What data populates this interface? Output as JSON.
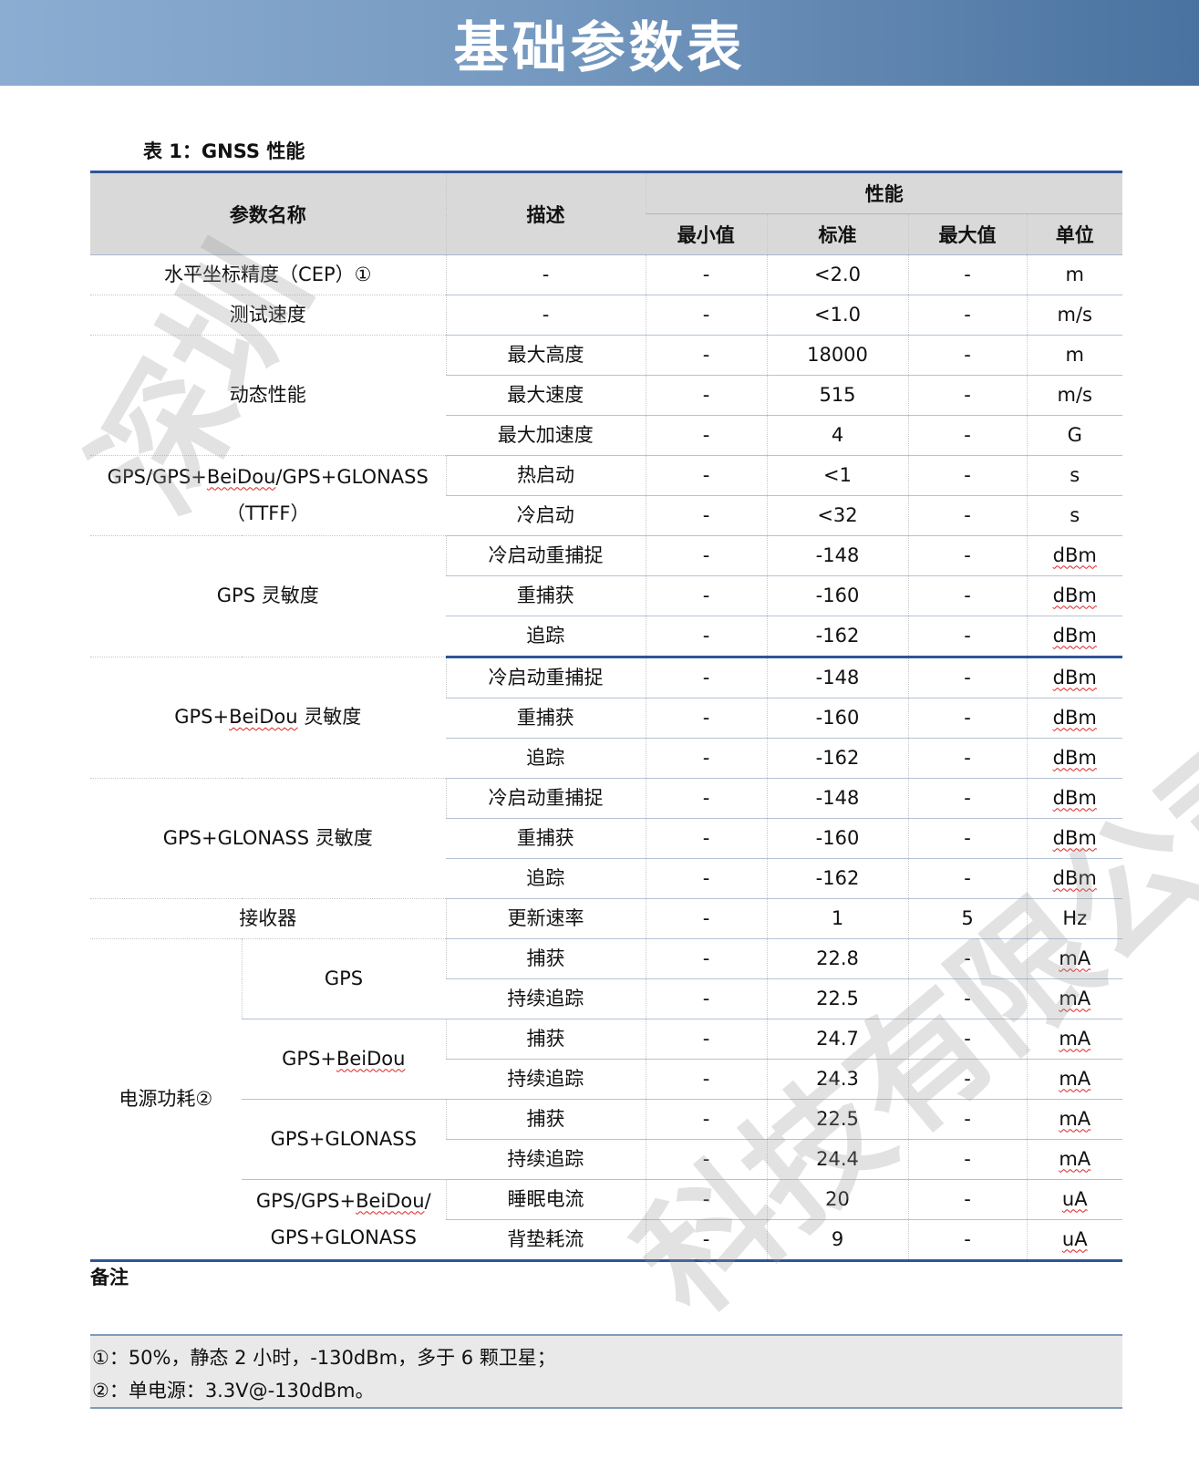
{
  "banner": {
    "title": "基础参数表"
  },
  "watermark": {
    "text1": "深圳",
    "text2": "科技有限公司"
  },
  "caption": "表 1：GNSS 性能",
  "header": {
    "param": "参数名称",
    "desc": "描述",
    "perf": "性能",
    "min": "最小值",
    "typ": "标准",
    "max": "最大值",
    "unit": "单位"
  },
  "groups": [
    {
      "name": "水平坐标精度（CEP）①",
      "rows": [
        {
          "desc": "-",
          "min": "-",
          "typ": "<2.0",
          "max": "-",
          "unit": "m"
        }
      ]
    },
    {
      "name": "测试速度",
      "rows": [
        {
          "desc": "-",
          "min": "-",
          "typ": "<1.0",
          "max": "-",
          "unit": "m/s"
        }
      ]
    },
    {
      "name": "动态性能",
      "rows": [
        {
          "desc": "最大高度",
          "min": "-",
          "typ": "18000",
          "max": "-",
          "unit": "m"
        },
        {
          "desc": "最大速度",
          "min": "-",
          "typ": "515",
          "max": "-",
          "unit": "m/s"
        },
        {
          "desc": "最大加速度",
          "min": "-",
          "typ": "4",
          "max": "-",
          "unit": "G"
        }
      ]
    },
    {
      "name": "GPS/GPS+BeiDou/GPS+GLONASS（TTFF）",
      "rows": [
        {
          "desc": "热启动",
          "min": "-",
          "typ": "<1",
          "max": "-",
          "unit": "s"
        },
        {
          "desc": "冷启动",
          "min": "-",
          "typ": "<32",
          "max": "-",
          "unit": "s"
        }
      ]
    },
    {
      "name": "GPS 灵敏度",
      "rows": [
        {
          "desc": "冷启动重捕捉",
          "min": "-",
          "typ": "-148",
          "max": "-",
          "unit": "dBm"
        },
        {
          "desc": "重捕获",
          "min": "-",
          "typ": "-160",
          "max": "-",
          "unit": "dBm"
        },
        {
          "desc": "追踪",
          "min": "-",
          "typ": "-162",
          "max": "-",
          "unit": "dBm"
        }
      ]
    },
    {
      "name": "GPS+BeiDou 灵敏度",
      "rows": [
        {
          "desc": "冷启动重捕捉",
          "min": "-",
          "typ": "-148",
          "max": "-",
          "unit": "dBm"
        },
        {
          "desc": "重捕获",
          "min": "-",
          "typ": "-160",
          "max": "-",
          "unit": "dBm"
        },
        {
          "desc": "追踪",
          "min": "-",
          "typ": "-162",
          "max": "-",
          "unit": "dBm"
        }
      ]
    },
    {
      "name": "GPS+GLONASS 灵敏度",
      "rows": [
        {
          "desc": "冷启动重捕捉",
          "min": "-",
          "typ": "-148",
          "max": "-",
          "unit": "dBm"
        },
        {
          "desc": "重捕获",
          "min": "-",
          "typ": "-160",
          "max": "-",
          "unit": "dBm"
        },
        {
          "desc": "追踪",
          "min": "-",
          "typ": "-162",
          "max": "-",
          "unit": "dBm"
        }
      ]
    },
    {
      "name": "接收器",
      "rows": [
        {
          "desc": "更新速率",
          "min": "-",
          "typ": "1",
          "max": "5",
          "unit": "Hz"
        }
      ]
    },
    {
      "name": "电源功耗②",
      "subgroups": [
        {
          "name": "GPS",
          "rows": [
            {
              "desc": "捕获",
              "min": "-",
              "typ": "22.8",
              "max": "-",
              "unit": "mA"
            },
            {
              "desc": "持续追踪",
              "min": "-",
              "typ": "22.5",
              "max": "-",
              "unit": "mA"
            }
          ]
        },
        {
          "name": "GPS+BeiDou",
          "rows": [
            {
              "desc": "捕获",
              "min": "-",
              "typ": "24.7",
              "max": "-",
              "unit": "mA"
            },
            {
              "desc": "持续追踪",
              "min": "-",
              "typ": "24.3",
              "max": "-",
              "unit": "mA"
            }
          ]
        },
        {
          "name": "GPS+GLONASS",
          "rows": [
            {
              "desc": "捕获",
              "min": "-",
              "typ": "22.5",
              "max": "-",
              "unit": "mA"
            },
            {
              "desc": "持续追踪",
              "min": "-",
              "typ": "24.4",
              "max": "-",
              "unit": "mA"
            }
          ]
        },
        {
          "name": "GPS/GPS+BeiDou/ GPS+GLONASS",
          "rows": [
            {
              "desc": "睡眠电流",
              "min": "-",
              "typ": "20",
              "max": "-",
              "unit": "uA"
            },
            {
              "desc": "背垫耗流",
              "min": "-",
              "typ": "9",
              "max": "-",
              "unit": "uA"
            }
          ]
        }
      ]
    }
  ],
  "notes": {
    "title": "备注",
    "items": [
      "①：50%，静态 2 小时，-130dBm，多于 6 颗卫星；",
      "②：单电源：3.3V@-130dBm。"
    ]
  }
}
